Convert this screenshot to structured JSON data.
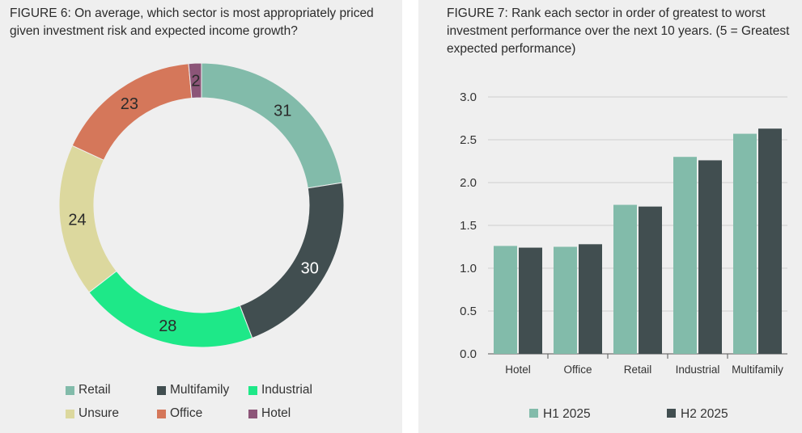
{
  "chart_data": [
    {
      "type": "pie",
      "title": "FIGURE 6: On average, which sector is most appropriately priced given investment risk and expected income growth?",
      "slices": [
        {
          "name": "Retail",
          "value": 31,
          "color": "#82bbaa"
        },
        {
          "name": "Multifamily",
          "value": 30,
          "color": "#414e50"
        },
        {
          "name": "Industrial",
          "value": 28,
          "color": "#1ee888"
        },
        {
          "name": "Unsure",
          "value": 24,
          "color": "#dcd89e"
        },
        {
          "name": "Office",
          "value": 23,
          "color": "#d5775a"
        },
        {
          "name": "Hotel",
          "value": 2,
          "color": "#8c5578"
        }
      ],
      "donut": true,
      "legend": "bottom"
    },
    {
      "type": "bar",
      "title": "FIGURE 7: Rank each sector in order of greatest to worst investment performance over the next 10 years. (5 = Greatest expected performance)",
      "categories": [
        "Hotel",
        "Office",
        "Retail",
        "Industrial",
        "Multifamily"
      ],
      "series": [
        {
          "name": "H1 2025",
          "values": [
            1.26,
            1.25,
            1.74,
            2.3,
            2.57
          ],
          "color": "#82bbaa"
        },
        {
          "name": "H2 2025",
          "values": [
            1.24,
            1.28,
            1.72,
            2.26,
            2.63
          ],
          "color": "#414e50"
        }
      ],
      "ylim": [
        0,
        3.0
      ],
      "yticks": [
        "0.0",
        "0.5",
        "1.0",
        "1.5",
        "2.0",
        "2.5",
        "3.0"
      ],
      "grid": true,
      "legend": "bottom"
    }
  ]
}
